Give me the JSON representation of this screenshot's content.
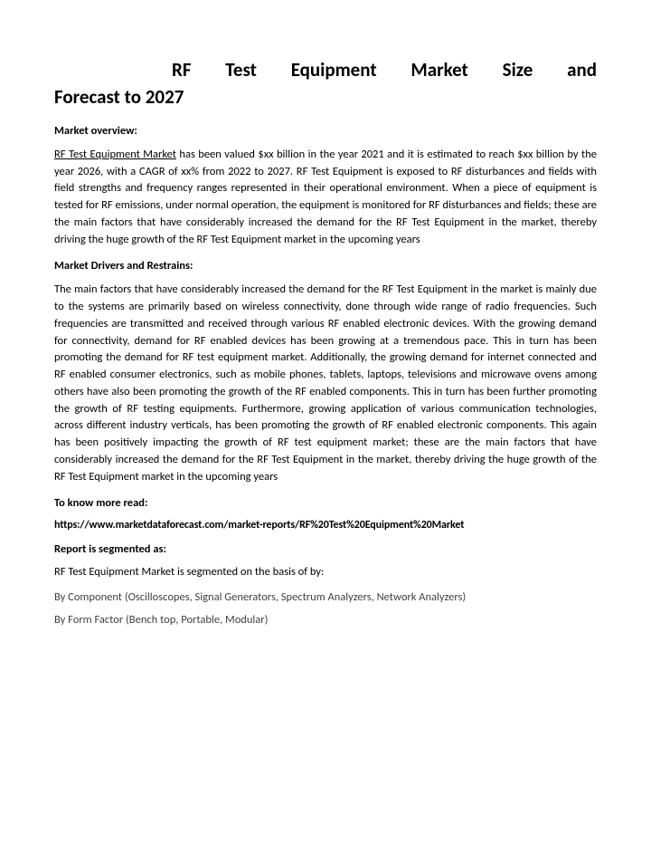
{
  "title_line1": "RF Test Equipment Market Size and",
  "title_line2": "Forecast to 2027",
  "sections": {
    "overview_heading": "Market overview:",
    "overview_link": "RF Test Equipment Market",
    "overview_rest": " has been valued $xx billion in the year 2021 and it is estimated to reach $xx billion by the year 2026, with a CAGR of xx% from 2022 to 2027. RF Test Equipment is exposed to RF disturbances and fields with field strengths and frequency ranges represented in their operational environment. When a piece of equipment is tested for RF emissions, under normal operation, the equipment is monitored for RF disturbances and fields; these are the main factors that have considerably increased the demand for the RF Test Equipment in the market, thereby driving the huge growth of the RF Test Equipment market in the upcoming years",
    "drivers_heading": "Market Drivers and Restrains:",
    "drivers_body": "The main factors that have considerably increased the demand for the RF Test Equipment in the market is mainly due to the systems are primarily based on wireless connectivity, done through wide range of radio frequencies. Such frequencies are transmitted and received through various RF enabled electronic devices. With the growing demand for connectivity, demand for RF enabled devices has been growing at a tremendous pace. This in turn has been promoting the demand for RF test equipment market. Additionally, the growing demand for internet connected and RF enabled consumer electronics, such as mobile phones, tablets, laptops, televisions and microwave ovens among others have also been promoting the growth of the RF enabled components. This in turn has been further promoting the growth of RF testing equipments. Furthermore, growing application of various communication technologies, across different industry verticals, has been promoting the growth of RF enabled electronic components. This again has been positively impacting the growth of RF test equipment market; these are the main factors that have considerably increased the demand for the RF Test Equipment in the market, thereby driving the huge growth of the RF Test Equipment market in the upcoming years",
    "know_more_heading": "To know more read:",
    "url": "https://www.marketdataforecast.com/market-reports/RF%20Test%20Equipment%20Market",
    "segmented_heading": "Report is segmented as:",
    "segmented_intro": "RF Test Equipment Market is segmented on the basis of by:",
    "seg_component": "By Component (Oscilloscopes, Signal Generators, Spectrum Analyzers, Network Analyzers)",
    "seg_form": "By Form Factor (Bench top, Portable, Modular)"
  }
}
